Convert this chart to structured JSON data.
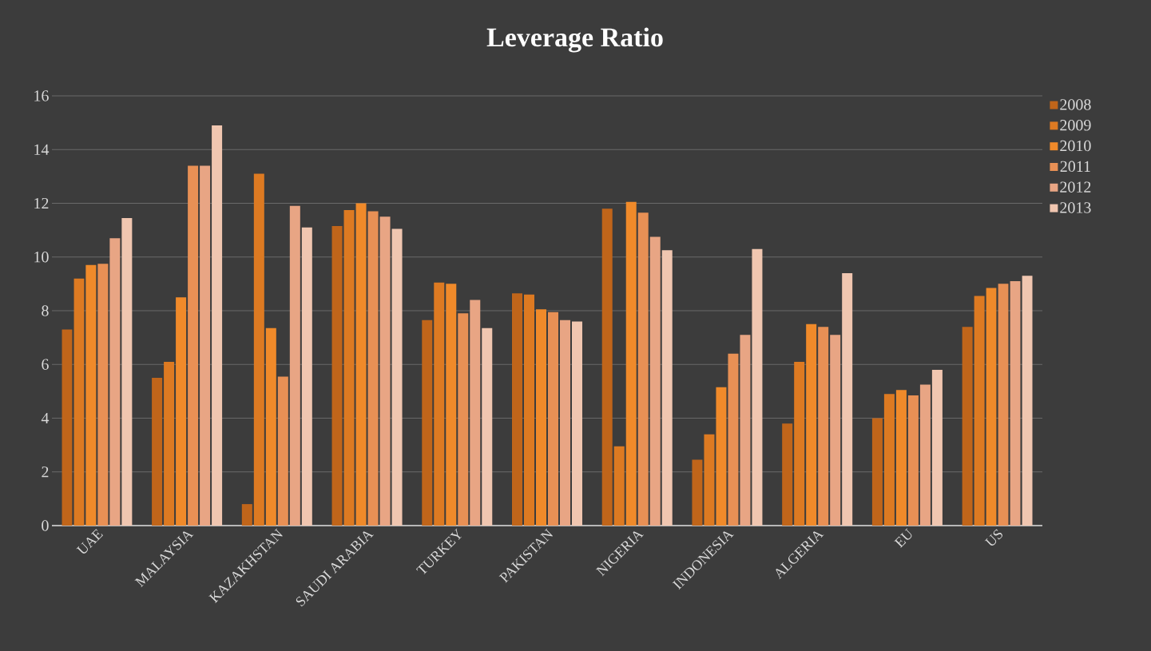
{
  "chart_data": {
    "type": "bar",
    "title": "Leverage Ratio",
    "categories": [
      "UAE",
      "MALAYSIA",
      "KAZAKHSTAN",
      "SAUDI ARABIA",
      "TURKEY",
      "PAKISTAN",
      "NIGERIA",
      "INDONESIA",
      "ALGERIA",
      "EU",
      "US"
    ],
    "series": [
      {
        "name": "2008",
        "color": "#c0651a",
        "values": [
          7.3,
          5.5,
          0.8,
          11.15,
          7.65,
          8.65,
          11.8,
          2.45,
          3.8,
          4.0,
          7.4
        ]
      },
      {
        "name": "2009",
        "color": "#dd7a22",
        "values": [
          9.2,
          6.1,
          13.1,
          11.75,
          9.05,
          8.6,
          2.95,
          3.4,
          6.1,
          4.9,
          8.55
        ]
      },
      {
        "name": "2010",
        "color": "#f08a2a",
        "values": [
          9.7,
          8.5,
          7.35,
          12.0,
          9.0,
          8.05,
          12.05,
          5.15,
          7.5,
          5.05,
          8.85
        ]
      },
      {
        "name": "2011",
        "color": "#e89055",
        "values": [
          9.75,
          13.4,
          5.55,
          11.7,
          7.9,
          7.95,
          11.65,
          6.4,
          7.4,
          4.85,
          9.0
        ]
      },
      {
        "name": "2012",
        "color": "#e8a584",
        "values": [
          10.7,
          13.4,
          11.9,
          11.5,
          8.4,
          7.65,
          10.75,
          7.1,
          7.1,
          5.25,
          9.1
        ]
      },
      {
        "name": "2013",
        "color": "#f0c6b0",
        "values": [
          11.45,
          14.9,
          11.1,
          11.05,
          7.35,
          7.6,
          10.25,
          10.3,
          9.4,
          5.8,
          9.3
        ]
      }
    ],
    "ylim": [
      0,
      16
    ],
    "yticks": [
      0,
      2,
      4,
      6,
      8,
      10,
      12,
      14,
      16
    ],
    "grid": "y",
    "legend": "right"
  }
}
